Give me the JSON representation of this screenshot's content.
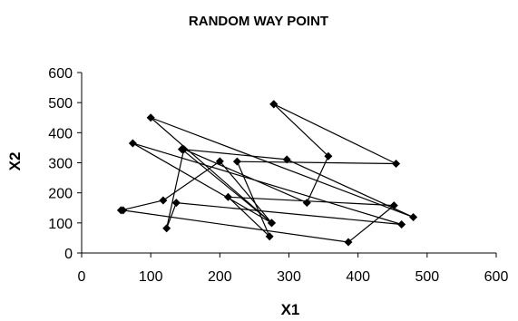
{
  "chart_data": {
    "type": "line",
    "title": "RANDOM WAY POINT",
    "xlabel": "X1",
    "ylabel": "X2",
    "xlim": [
      0,
      600
    ],
    "ylim": [
      0,
      600
    ],
    "xticks": [
      "0",
      "100",
      "200",
      "300",
      "400",
      "500",
      "600"
    ],
    "yticks": [
      "0",
      "100",
      "200",
      "300",
      "400",
      "500",
      "600"
    ],
    "grid": false,
    "legend": "none",
    "line_color": "#000000",
    "marker": "diamond",
    "series": [
      {
        "x": [
          278,
          455,
          225,
          272,
          212,
          452,
          386,
          60,
          57,
          118,
          200,
          275,
          100,
          480,
          297,
          145,
          275,
          74,
          463,
          137,
          123,
          148,
          326,
          357,
          278
        ],
        "y": [
          495,
          297,
          304,
          55,
          186,
          158,
          36,
          142,
          142,
          175,
          305,
          100,
          450,
          119,
          311,
          345,
          100,
          365,
          95,
          167,
          82,
          345,
          167,
          322,
          495
        ]
      }
    ]
  }
}
